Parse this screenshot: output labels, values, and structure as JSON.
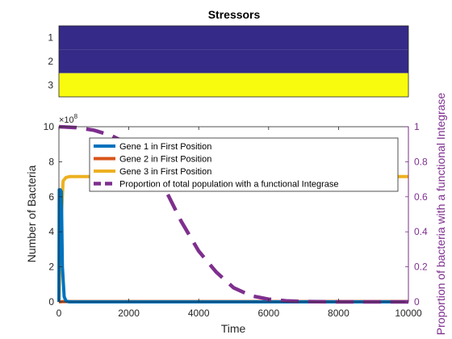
{
  "chart_data": [
    {
      "type": "heatmap",
      "title": "Stressors",
      "rows": [
        "1",
        "2",
        "3"
      ],
      "values": [
        [
          0
        ],
        [
          0
        ],
        [
          1
        ]
      ],
      "colors": {
        "low": "#352a87",
        "high": "#f9fb0e"
      }
    },
    {
      "type": "line",
      "xlabel": "Time",
      "ylabel": "Number of Bacteria",
      "ylabel_right": "Proportion of bacteria with a functional Integrase",
      "y_exponent_label": "×10",
      "y_exponent": "8",
      "xlim": [
        0,
        10000
      ],
      "ylim": [
        0,
        10
      ],
      "ylim_right": [
        0,
        1
      ],
      "x_ticks": [
        "0",
        "2000",
        "4000",
        "6000",
        "8000",
        "10000"
      ],
      "y_ticks": [
        "0",
        "2",
        "4",
        "6",
        "8",
        "10"
      ],
      "y_ticks_right": [
        "0",
        "0.2",
        "0.4",
        "0.6",
        "0.8",
        "1"
      ],
      "legend_position": "top",
      "series": [
        {
          "name": "Gene 1 in First Position",
          "color": "#0072bd",
          "axis": "left",
          "x": [
            0,
            10,
            40,
            70,
            100,
            150,
            200,
            300,
            10000
          ],
          "y": [
            0,
            6.4,
            6.4,
            6.3,
            2.0,
            0.3,
            0.05,
            0,
            0
          ]
        },
        {
          "name": "Gene 2 in First Position",
          "color": "#d95319",
          "axis": "left",
          "x": [
            0,
            100,
            10000
          ],
          "y": [
            0,
            0.02,
            0.02
          ]
        },
        {
          "name": "Gene 3 in First Position",
          "color": "#edb120",
          "axis": "left",
          "x": [
            0,
            60,
            120,
            200,
            300,
            500,
            10000
          ],
          "y": [
            0,
            4.5,
            6.9,
            7.1,
            7.15,
            7.15,
            7.15
          ]
        },
        {
          "name": "Proportion of total population with a functional Integrase",
          "color": "#7e2f8e",
          "axis": "right",
          "dashed": true,
          "x": [
            0,
            500,
            1000,
            1500,
            2000,
            2500,
            3000,
            3500,
            4000,
            4500,
            5000,
            5500,
            6000,
            6500,
            7000,
            8000,
            9000,
            10000
          ],
          "y": [
            1.0,
            0.995,
            0.98,
            0.95,
            0.9,
            0.81,
            0.66,
            0.46,
            0.29,
            0.17,
            0.08,
            0.035,
            0.015,
            0.006,
            0.002,
            0,
            0,
            0
          ]
        }
      ]
    }
  ]
}
